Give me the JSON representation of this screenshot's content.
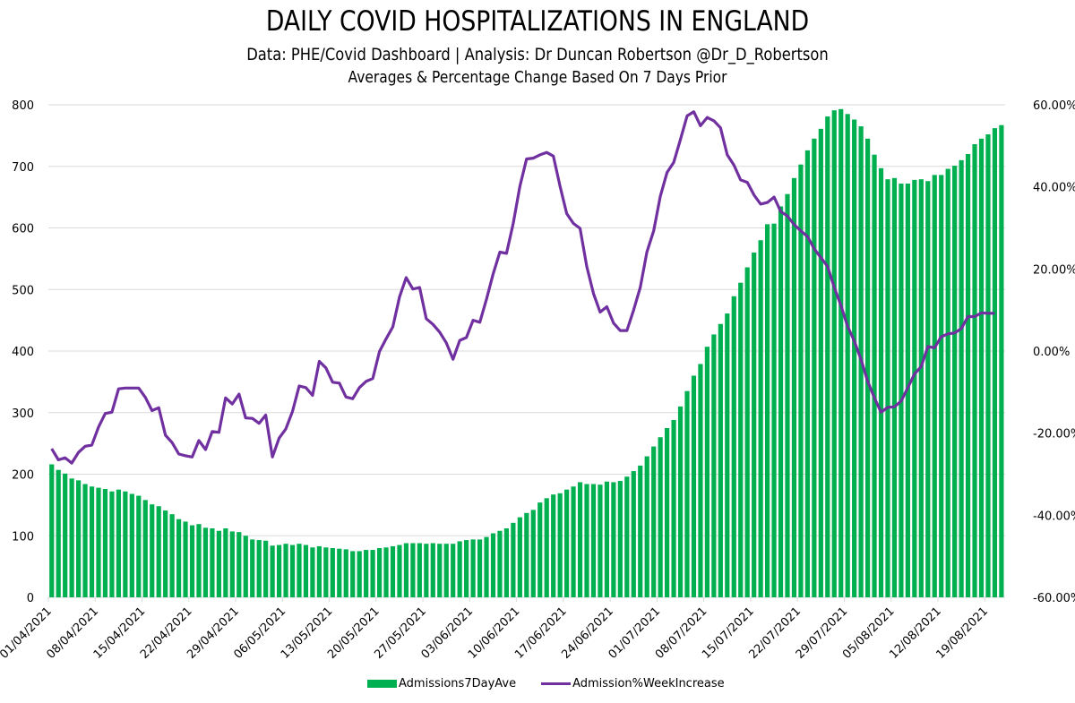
{
  "header": {
    "title": "DAILY COVID HOSPITALIZATIONS IN ENGLAND",
    "subtitle": "Data: PHE/Covid Dashboard | Analysis: Dr Duncan Robertson @Dr_D_Robertson",
    "note": "Averages & Percentage Change Based On 7 Days Prior"
  },
  "colors": {
    "bar": "#00b050",
    "line": "#7030a0",
    "grid": "#d9d9d9"
  },
  "chart_data": {
    "type": "bar",
    "title": "DAILY COVID HOSPITALIZATIONS IN ENGLAND",
    "subtitle": "Data: PHE/Covid Dashboard | Analysis: Dr Duncan Robertson @Dr_D_Robertson",
    "note": "Averages & Percentage Change Based On 7 Days Prior",
    "xlabel": "",
    "ylabel": "",
    "start_date": "01/04/2021",
    "end_date": "20/08/2021",
    "x_tick_labels": [
      "01/04/2021",
      "08/04/2021",
      "15/04/2021",
      "22/04/2021",
      "29/04/2021",
      "06/05/2021",
      "13/05/2021",
      "20/05/2021",
      "27/05/2021",
      "03/06/2021",
      "10/06/2021",
      "17/06/2021",
      "24/06/2021",
      "01/07/2021",
      "08/07/2021",
      "15/07/2021",
      "22/07/2021",
      "29/07/2021",
      "05/08/2021",
      "12/08/2021",
      "19/08/2021"
    ],
    "y_left": {
      "min": 0,
      "max": 800,
      "ticks": [
        0,
        100,
        200,
        300,
        400,
        500,
        600,
        700,
        800
      ],
      "tick_labels": [
        "0",
        "100",
        "200",
        "300",
        "400",
        "500",
        "600",
        "700",
        "800"
      ]
    },
    "y_right": {
      "min": -60,
      "max": 60,
      "ticks": [
        -60,
        -40,
        -20,
        0,
        20,
        40,
        60
      ],
      "tick_labels": [
        "-60.00%",
        "-40.00%",
        "-20.00%",
        "0.00%",
        "20.00%",
        "40.00%",
        "60.00%"
      ]
    },
    "grid": true,
    "legend_position": "bottom",
    "series": [
      {
        "name": "Admissions7DayAve",
        "type": "bar",
        "axis": "left",
        "values": [
          216,
          207,
          201,
          193,
          190,
          184,
          180,
          178,
          176,
          172,
          175,
          172,
          168,
          165,
          158,
          151,
          148,
          141,
          135,
          127,
          123,
          117,
          119,
          113,
          112,
          108,
          112,
          107,
          106,
          100,
          94,
          93,
          92,
          84,
          85,
          87,
          85,
          87,
          85,
          81,
          83,
          81,
          80,
          79,
          78,
          75,
          75,
          77,
          77,
          80,
          81,
          83,
          85,
          88,
          88,
          88,
          87,
          88,
          87,
          87,
          87,
          91,
          93,
          94,
          94,
          98,
          104,
          108,
          112,
          121,
          130,
          137,
          142,
          154,
          161,
          167,
          169,
          175,
          180,
          187,
          184,
          184,
          183,
          188,
          187,
          189,
          196,
          205,
          214,
          229,
          245,
          260,
          275,
          288,
          310,
          335,
          360,
          379,
          407,
          427,
          444,
          461,
          489,
          511,
          536,
          560,
          580,
          606,
          607,
          635,
          655,
          681,
          703,
          726,
          745,
          761,
          781,
          791,
          793,
          785,
          776,
          765,
          745,
          719,
          697,
          679,
          681,
          672,
          672,
          678,
          679,
          676,
          686,
          686,
          696,
          701,
          710,
          720,
          736,
          745,
          752,
          762,
          767
        ]
      },
      {
        "name": "Admission%WeekIncrease",
        "type": "line",
        "axis": "right",
        "unit": "%",
        "values": [
          -23.8,
          -26.5,
          -26.0,
          -27.3,
          -24.7,
          -23.2,
          -22.9,
          -18.5,
          -15.2,
          -14.9,
          -9.2,
          -9.0,
          -9.0,
          -9.0,
          -11.3,
          -14.5,
          -13.8,
          -20.5,
          -22.3,
          -25.1,
          -25.5,
          -25.8,
          -21.8,
          -24.0,
          -19.6,
          -19.8,
          -11.4,
          -12.9,
          -10.5,
          -16.3,
          -16.4,
          -17.6,
          -15.6,
          -25.8,
          -21.2,
          -19.0,
          -14.7,
          -8.5,
          -8.9,
          -10.8,
          -2.5,
          -4.1,
          -7.6,
          -7.8,
          -11.2,
          -11.6,
          -8.9,
          -7.4,
          -6.7,
          -0.1,
          3.0,
          5.9,
          13.2,
          17.9,
          15.1,
          15.5,
          7.9,
          6.5,
          4.6,
          2.0,
          -2.0,
          2.6,
          3.3,
          7.5,
          7.0,
          12.6,
          18.8,
          24.1,
          23.8,
          31.1,
          40.2,
          46.8,
          47.0,
          47.8,
          48.4,
          47.5,
          40.2,
          33.5,
          31.1,
          29.9,
          20.6,
          14.0,
          9.5,
          10.8,
          6.8,
          5.0,
          5.0,
          10.0,
          15.5,
          24.2,
          29.3,
          37.7,
          43.5,
          46.0,
          51.5,
          57.3,
          58.3,
          54.9,
          56.9,
          56.1,
          54.4,
          47.8,
          45.3,
          41.7,
          41.1,
          38.0,
          35.8,
          36.2,
          37.5,
          34.0,
          32.9,
          30.8,
          29.3,
          27.9,
          24.9,
          22.8,
          20.6,
          15.5,
          11.1,
          6.0,
          2.4,
          -2.0,
          -7.4,
          -11.4,
          -14.9,
          -13.7,
          -13.6,
          -12.2,
          -8.9,
          -5.6,
          -3.8,
          1.1,
          0.8,
          3.5,
          4.2,
          4.4,
          5.5,
          8.4,
          8.4,
          9.3,
          9.2,
          9.2
        ]
      }
    ]
  },
  "legend": {
    "items": [
      {
        "label": "Admissions7DayAve"
      },
      {
        "label": "Admission%WeekIncrease"
      }
    ]
  }
}
